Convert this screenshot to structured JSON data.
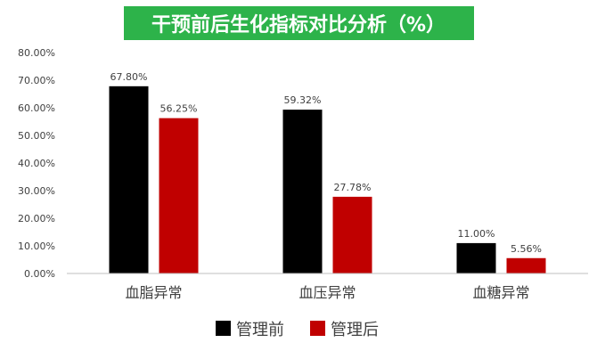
{
  "chart_data": {
    "type": "bar",
    "title": "干预前后生化指标对比分析（%）",
    "categories": [
      "血脂异常",
      "血压异常",
      "血糖异常"
    ],
    "series": [
      {
        "name": "管理前",
        "values": [
          67.8,
          59.32,
          11.0
        ],
        "labels": [
          "67.80%",
          "59.32%",
          "11.00%"
        ],
        "color": "#000000"
      },
      {
        "name": "管理后",
        "values": [
          56.25,
          27.78,
          5.56
        ],
        "labels": [
          "56.25%",
          "27.78%",
          "5.56%"
        ],
        "color": "#c00000"
      }
    ],
    "ylim": [
      0,
      80
    ],
    "yticks": [
      0,
      10,
      20,
      30,
      40,
      50,
      60,
      70,
      80
    ],
    "ytick_labels": [
      "0.00%",
      "10.00%",
      "20.00%",
      "30.00%",
      "40.00%",
      "50.00%",
      "60.00%",
      "70.00%",
      "80.00%"
    ],
    "xlabel": "",
    "ylabel": "",
    "grid": false,
    "legend_position": "bottom-center"
  },
  "colors": {
    "title_background": "#2db34a",
    "title_text": "#ffffff",
    "axis": "#bfbfbf",
    "text": "#404040"
  }
}
